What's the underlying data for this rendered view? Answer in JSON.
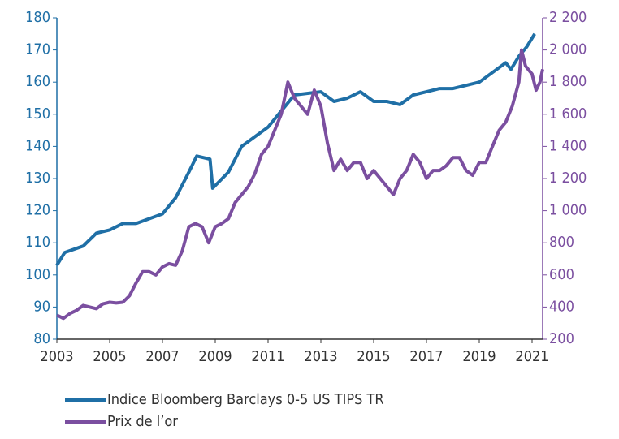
{
  "chart_data": {
    "type": "line",
    "xlim": [
      2003,
      2021.4
    ],
    "xticks": [
      2003,
      2005,
      2007,
      2009,
      2011,
      2013,
      2015,
      2017,
      2019,
      2021
    ],
    "ylim": [
      80,
      180
    ],
    "yticks": [
      80,
      90,
      100,
      110,
      120,
      130,
      140,
      150,
      160,
      170,
      180
    ],
    "y2lim": [
      200,
      2200
    ],
    "y2ticks": [
      200,
      400,
      600,
      800,
      {
        "value": 1000,
        "label": "1 000"
      },
      {
        "value": 1200,
        "label": "1 200"
      },
      {
        "value": 1400,
        "label": "1 400"
      },
      {
        "value": 1600,
        "label": "1 600"
      },
      {
        "value": 1800,
        "label": "1 800"
      },
      {
        "value": 2000,
        "label": "2 000"
      },
      {
        "value": 2200,
        "label": "2 200"
      }
    ],
    "series": [
      {
        "name": "Indice Bloomberg Barclays 0-5 US TIPS TR",
        "color": "#1f6fa6",
        "x": [
          2003,
          2003.3,
          2004,
          2004.5,
          2005,
          2005.5,
          2006,
          2007,
          2007.5,
          2008,
          2008.3,
          2008.8,
          2008.9,
          2009.5,
          2010,
          2010.5,
          2011,
          2011.5,
          2012,
          2013,
          2013.5,
          2014,
          2014.5,
          2015,
          2015.5,
          2016,
          2016.5,
          2017,
          2017.5,
          2018,
          2018.5,
          2019,
          2019.5,
          2020,
          2020.2,
          2020.5,
          2020.8,
          2021.1
        ],
        "values": [
          103,
          107,
          109,
          113,
          114,
          116,
          116,
          119,
          124,
          132,
          137,
          136,
          127,
          132,
          140,
          143,
          146,
          151,
          156,
          157,
          154,
          155,
          157,
          154,
          154,
          153,
          156,
          157,
          158,
          158,
          159,
          160,
          163,
          166,
          164,
          168,
          171,
          175
        ]
      },
      {
        "name": "Prix de l’or",
        "color": "#7b4fa0",
        "axis": "y2",
        "x": [
          2003,
          2003.25,
          2003.5,
          2003.75,
          2004,
          2004.25,
          2004.5,
          2004.75,
          2005,
          2005.25,
          2005.5,
          2005.75,
          2006,
          2006.25,
          2006.5,
          2006.75,
          2007,
          2007.25,
          2007.5,
          2007.75,
          2008,
          2008.25,
          2008.5,
          2008.75,
          2009,
          2009.25,
          2009.5,
          2009.75,
          2010,
          2010.25,
          2010.5,
          2010.75,
          2011,
          2011.25,
          2011.5,
          2011.75,
          2012,
          2012.25,
          2012.5,
          2012.75,
          2013,
          2013.25,
          2013.5,
          2013.75,
          2014,
          2014.25,
          2014.5,
          2014.75,
          2015,
          2015.25,
          2015.5,
          2015.75,
          2016,
          2016.25,
          2016.5,
          2016.75,
          2017,
          2017.25,
          2017.5,
          2017.75,
          2018,
          2018.25,
          2018.5,
          2018.75,
          2019,
          2019.25,
          2019.5,
          2019.75,
          2020,
          2020.25,
          2020.5,
          2020.6,
          2020.75,
          2021,
          2021.15,
          2021.3,
          2021.4
        ],
        "values": [
          350,
          330,
          360,
          380,
          410,
          400,
          390,
          420,
          430,
          425,
          430,
          470,
          550,
          620,
          620,
          600,
          650,
          670,
          660,
          750,
          900,
          920,
          900,
          800,
          900,
          920,
          950,
          1050,
          1100,
          1150,
          1230,
          1350,
          1400,
          1500,
          1600,
          1800,
          1700,
          1650,
          1600,
          1750,
          1650,
          1420,
          1250,
          1320,
          1250,
          1300,
          1300,
          1200,
          1250,
          1200,
          1150,
          1100,
          1200,
          1250,
          1350,
          1300,
          1200,
          1250,
          1250,
          1280,
          1330,
          1330,
          1250,
          1220,
          1300,
          1300,
          1400,
          1500,
          1550,
          1650,
          1800,
          2000,
          1900,
          1850,
          1750,
          1800,
          1880
        ]
      }
    ]
  }
}
